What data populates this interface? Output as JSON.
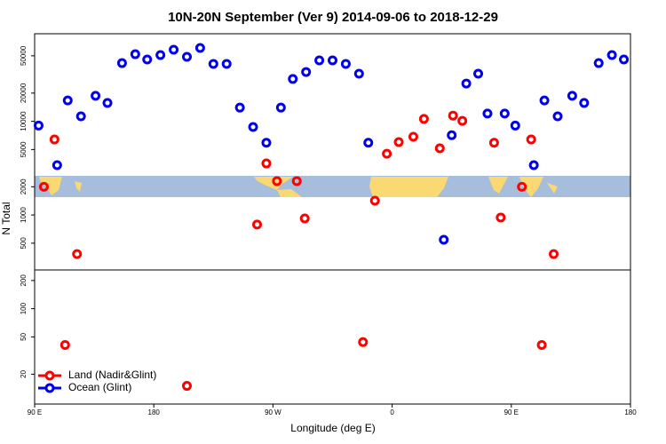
{
  "chart_data": {
    "type": "scatter",
    "title": "10N-20N September (Ver 9)   2014-09-06 to 2018-12-29",
    "x_label": "Longitude (deg E)",
    "y_label": "N Total",
    "log_y": true,
    "legend": "bottom-left",
    "xlim": [
      90,
      540
    ],
    "xticks": [
      {
        "value": 90,
        "label": "90 E"
      },
      {
        "value": 180,
        "label": "180"
      },
      {
        "value": 270,
        "label": "90 W"
      },
      {
        "value": 360,
        "label": "0"
      },
      {
        "value": 450,
        "label": "90 E"
      },
      {
        "value": 540,
        "label": "180"
      }
    ],
    "ylim": [
      9.6,
      86000
    ],
    "yticks": [
      20,
      50,
      100,
      200,
      500,
      1000,
      2000,
      5000,
      10000,
      20000,
      50000
    ],
    "series": [
      {
        "name": "Land (Nadir&Glint)",
        "color": "#ff0000",
        "x": [
          97,
          105,
          113,
          122,
          205,
          258,
          265,
          273,
          288,
          294,
          338,
          347,
          356,
          365,
          376,
          384,
          396,
          406,
          413,
          437,
          442,
          458,
          465,
          473,
          482
        ],
        "values": [
          2000,
          6400,
          41,
          383,
          15,
          790,
          3550,
          2300,
          2300,
          918,
          44,
          1420,
          4510,
          6000,
          6840,
          10600,
          5150,
          11500,
          10100,
          5900,
          940,
          2000,
          6400,
          41,
          383
        ]
      },
      {
        "name": "Ocean (Glint)",
        "color": "#0000ee",
        "x": [
          93,
          107,
          115,
          125,
          136,
          145,
          156,
          166,
          175,
          185,
          195,
          205,
          215,
          225,
          235,
          245,
          255,
          265,
          276,
          285,
          295,
          305,
          315,
          325,
          335,
          342,
          399,
          405,
          416,
          425,
          432,
          445,
          453,
          467,
          475,
          485,
          496,
          505,
          516,
          526,
          535
        ],
        "values": [
          9000,
          3400,
          16700,
          11300,
          18700,
          15700,
          41800,
          52000,
          45700,
          50900,
          58100,
          48800,
          60600,
          41000,
          41000,
          14000,
          8700,
          5900,
          14000,
          28300,
          33600,
          44700,
          44700,
          41000,
          32200,
          5900,
          544,
          7100,
          25300,
          32200,
          12100,
          12100,
          9000,
          3400,
          16700,
          11300,
          18700,
          15700,
          41800,
          50900,
          45700
        ]
      }
    ]
  }
}
